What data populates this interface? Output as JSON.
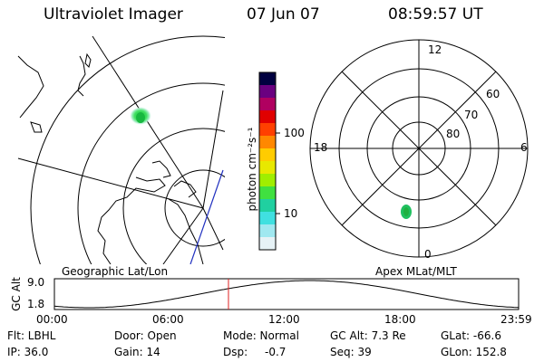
{
  "header": {
    "title": "Ultraviolet Imager",
    "date": "07 Jun 07",
    "time": "08:59:57 UT"
  },
  "colorbar": {
    "label": "photon cm⁻²s⁻¹",
    "ticks": [
      "100",
      "10"
    ],
    "colors": [
      "#000040",
      "#6a0080",
      "#b00060",
      "#e00000",
      "#ff4000",
      "#ff8800",
      "#ffcc00",
      "#e8e800",
      "#a0ee00",
      "#40e040",
      "#20d0a0",
      "#40e0e0",
      "#a0e8f0",
      "#e6f2f6"
    ]
  },
  "left_map": {
    "caption": "Geographic Lat/Lon"
  },
  "right_map": {
    "caption": "Apex MLat/MLT",
    "mlt_labels": [
      "12",
      "18",
      "6",
      "0"
    ],
    "lat_labels": [
      "60",
      "70",
      "80"
    ]
  },
  "timeline": {
    "ylabel": "GC Alt",
    "yticks": [
      "9.0",
      "1.8"
    ],
    "xticks": [
      "00:00",
      "06:00",
      "12:00",
      "18:00",
      "23:59"
    ],
    "current_time": "08:59:57"
  },
  "status": {
    "flt": "Flt: LBHL",
    "ip": "IP: 36.0",
    "door": "Door: Open",
    "gain": "Gain: 14",
    "mode": "Mode: Normal",
    "dsp_label": "Dsp:",
    "dsp_value": "-0.7",
    "gc_alt": "GC Alt: 7.3 Re",
    "seq": "Seq: 39",
    "glat": "GLat: -66.6",
    "glon": "GLon: 152.8"
  }
}
